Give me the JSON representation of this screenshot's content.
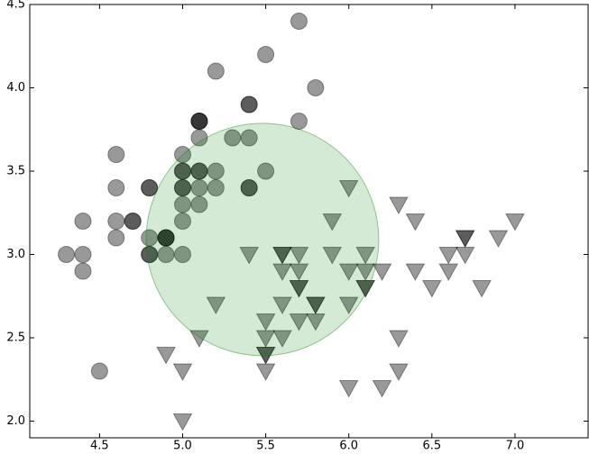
{
  "chart_data": {
    "type": "scatter",
    "xlim": [
      4.08,
      7.44
    ],
    "ylim": [
      1.9,
      4.5
    ],
    "xticks": [
      4.5,
      {
        "value": 5.0,
        "label": "5.0"
      },
      5.5,
      {
        "value": 6.0,
        "label": "6.0"
      },
      6.5,
      {
        "value": 7.0,
        "label": "7.0"
      }
    ],
    "yticks": [
      {
        "value": 2.0,
        "label": "2.0"
      },
      2.5,
      {
        "value": 3.0,
        "label": "3.0"
      },
      3.5,
      {
        "value": 4.0,
        "label": "4.0"
      },
      4.5
    ],
    "alpha": 0.4,
    "series": [
      {
        "marker": "circle",
        "color": "#000000",
        "x": [
          5.1,
          4.9,
          4.7,
          4.6,
          5.0,
          5.4,
          4.6,
          5.0,
          4.4,
          4.9,
          5.4,
          4.8,
          4.8,
          4.3,
          5.8,
          5.7,
          5.4,
          5.1,
          5.7,
          5.1,
          5.4,
          5.1,
          4.6,
          5.1,
          4.8,
          5.0,
          5.0,
          5.2,
          5.2,
          4.7,
          4.8,
          5.4,
          5.2,
          5.5,
          4.9,
          5.0,
          5.5,
          4.9,
          4.4,
          5.1,
          5.0,
          4.5,
          4.4,
          5.0,
          5.1,
          4.8,
          5.1,
          4.6,
          5.3,
          5.0
        ],
        "values": [
          3.5,
          3.0,
          3.2,
          3.1,
          3.6,
          3.9,
          3.4,
          3.4,
          2.9,
          3.1,
          3.7,
          3.4,
          3.0,
          3.0,
          4.0,
          4.4,
          3.9,
          3.5,
          3.8,
          3.8,
          3.4,
          3.7,
          3.6,
          3.3,
          3.4,
          3.0,
          3.4,
          3.5,
          3.4,
          3.2,
          3.1,
          3.4,
          4.1,
          4.2,
          3.1,
          3.2,
          3.5,
          3.1,
          3.0,
          3.4,
          3.5,
          2.3,
          3.2,
          3.5,
          3.8,
          3.0,
          3.8,
          3.2,
          3.7,
          3.3
        ]
      },
      {
        "marker": "triangle-down",
        "color": "#000000",
        "x": [
          7.0,
          6.4,
          6.9,
          5.5,
          6.5,
          5.7,
          6.3,
          4.9,
          6.6,
          5.2,
          5.0,
          5.9,
          6.0,
          6.1,
          5.6,
          6.7,
          5.6,
          5.8,
          6.2,
          5.6,
          5.9,
          6.1,
          6.3,
          6.1,
          6.4,
          6.6,
          6.8,
          6.7,
          6.0,
          5.7,
          5.5,
          5.5,
          5.8,
          6.0,
          5.4,
          6.0,
          6.7,
          6.3,
          5.6,
          5.5,
          5.5,
          6.1,
          5.8,
          5.0,
          5.6,
          5.7,
          5.7,
          6.2,
          5.1,
          5.7
        ],
        "values": [
          3.2,
          3.2,
          3.1,
          2.3,
          2.8,
          2.8,
          3.3,
          2.4,
          2.9,
          2.7,
          2.0,
          3.0,
          2.2,
          2.9,
          2.9,
          3.1,
          3.0,
          2.7,
          2.2,
          2.5,
          3.2,
          2.8,
          2.5,
          2.8,
          2.9,
          3.0,
          2.8,
          3.0,
          2.9,
          2.6,
          2.4,
          2.4,
          2.7,
          2.7,
          3.0,
          3.4,
          3.1,
          2.3,
          3.0,
          2.5,
          2.6,
          3.0,
          2.6,
          2.3,
          2.7,
          3.0,
          2.9,
          2.9,
          2.5,
          2.8
        ]
      }
    ],
    "overlay": {
      "shape": "circle",
      "center": [
        5.48,
        3.09
      ],
      "radius": 0.7,
      "color": "#008000",
      "alpha": 0.17
    }
  }
}
